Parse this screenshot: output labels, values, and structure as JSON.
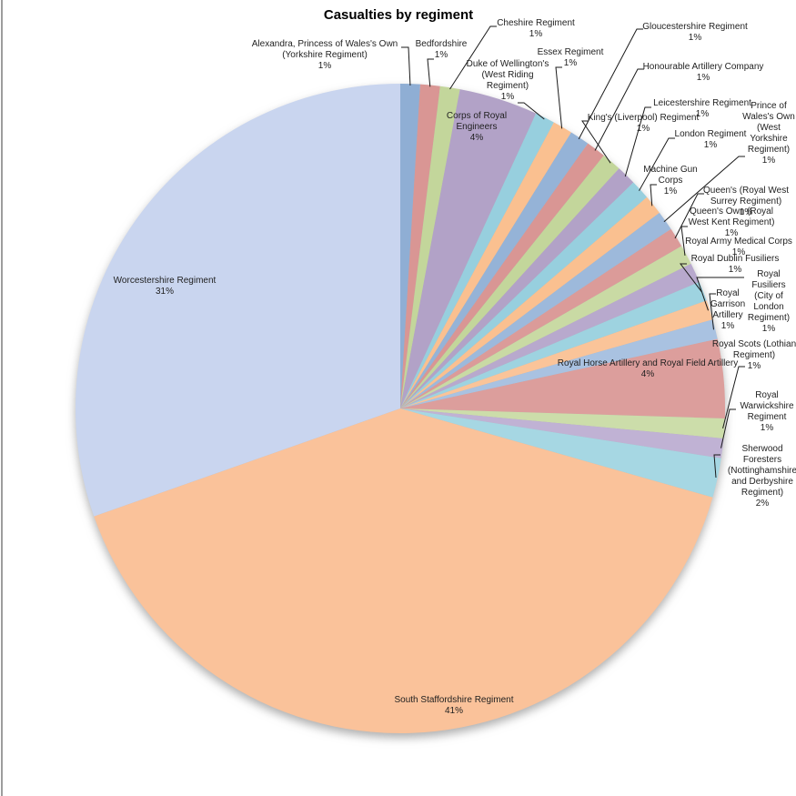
{
  "chart_data": {
    "type": "pie",
    "title": "Casualties by regiment",
    "legend": "none",
    "labels": "outside-with-leader-lines-and-inside-for-large-slices",
    "label_format": "category name + percent",
    "start_angle_deg": 0,
    "direction": "clockwise",
    "slices": [
      {
        "label": "Alexandra, Princess of Wales's Own (Yorkshire Regiment)",
        "pct": 1,
        "pct_text": "1%",
        "color": "#8FAED4"
      },
      {
        "label": "Bedfordshire",
        "pct": 1,
        "pct_text": "1%",
        "color": "#D99694"
      },
      {
        "label": "Cheshire Regiment",
        "pct": 1,
        "pct_text": "1%",
        "color": "#C3D69B"
      },
      {
        "label": "Corps of Royal Engineers",
        "pct": 4,
        "pct_text": "4%",
        "color": "#B2A2C7"
      },
      {
        "label": "Duke of Wellington's (West Riding Regiment)",
        "pct": 1,
        "pct_text": "1%",
        "color": "#97CFDE"
      },
      {
        "label": "Essex Regiment",
        "pct": 1,
        "pct_text": "1%",
        "color": "#FAC090"
      },
      {
        "label": "Gloucestershire Regiment",
        "pct": 1,
        "pct_text": "1%",
        "color": "#95B3D7"
      },
      {
        "label": "Honourable Artillery Company",
        "pct": 1,
        "pct_text": "1%",
        "color": "#D99694"
      },
      {
        "label": "King's (Liverpool) Regiment",
        "pct": 1,
        "pct_text": "1%",
        "color": "#C3D69B"
      },
      {
        "label": "Leicestershire Regiment",
        "pct": 1,
        "pct_text": "1%",
        "color": "#B2A2C7"
      },
      {
        "label": "London Regiment",
        "pct": 1,
        "pct_text": "1%",
        "color": "#97CFDE"
      },
      {
        "label": "Machine Gun Corps",
        "pct": 1,
        "pct_text": "1%",
        "color": "#FAC090"
      },
      {
        "label": "Prince of Wales's Own (West Yorkshire Regiment)",
        "pct": 1,
        "pct_text": "1%",
        "color": "#9DB9DB"
      },
      {
        "label": "Queen's (Royal West Surrey Regiment)",
        "pct": 1,
        "pct_text": "1%",
        "color": "#DB9B99"
      },
      {
        "label": "Queen's Own (Royal West Kent Regiment)",
        "pct": 1,
        "pct_text": "1%",
        "color": "#C9DAA4"
      },
      {
        "label": "Royal Army Medical Corps",
        "pct": 1,
        "pct_text": "1%",
        "color": "#B8A9CD"
      },
      {
        "label": "Royal Dublin Fusiliers",
        "pct": 1,
        "pct_text": "1%",
        "color": "#9ED3E0"
      },
      {
        "label": "Royal Fusiliers (City of London Regiment)",
        "pct": 1,
        "pct_text": "1%",
        "color": "#FAC499"
      },
      {
        "label": "Royal Garrison Artillery",
        "pct": 1,
        "pct_text": "1%",
        "color": "#A9C2E1"
      },
      {
        "label": "Royal Horse Artillery and Royal Field Artillery",
        "pct": 4,
        "pct_text": "4%",
        "color": "#DC9E9C"
      },
      {
        "label": "Royal Scots (Lothian Regiment)",
        "pct": 1,
        "pct_text": "1%",
        "color": "#CCDDAA"
      },
      {
        "label": "Royal Warwickshire Regiment",
        "pct": 1,
        "pct_text": "1%",
        "color": "#C0B2D4"
      },
      {
        "label": "Sherwood Foresters (Nottinghamshire and Derbyshire Regiment)",
        "pct": 2,
        "pct_text": "2%",
        "color": "#A6D7E3"
      },
      {
        "label": "South Staffordshire Regiment",
        "pct": 41,
        "pct_text": "41%",
        "color": "#FAC29A"
      },
      {
        "label": "Worcestershire Regiment",
        "pct": 31,
        "pct_text": "31%",
        "color": "#C9D5EF"
      }
    ]
  }
}
